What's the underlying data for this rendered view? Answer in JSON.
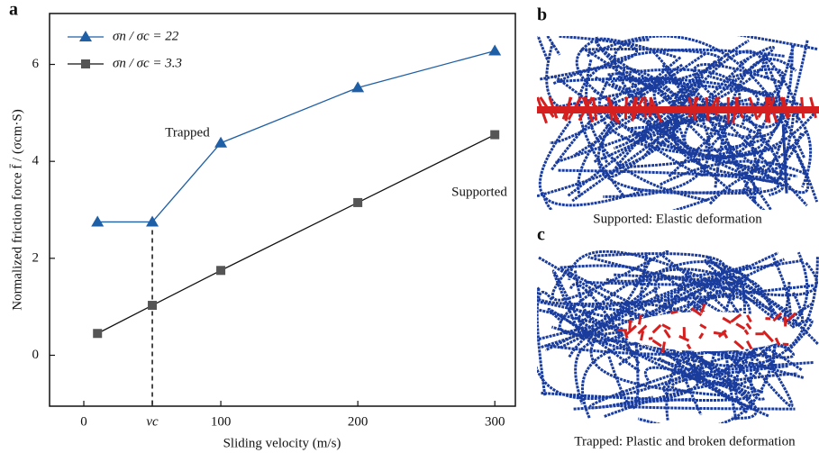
{
  "chart_data": {
    "type": "line",
    "x_label": "Sliding velocity (m/s)",
    "y_label": "Normalized friction force f̄ / (σcm·S)",
    "x": [
      10,
      50,
      100,
      200,
      300
    ],
    "series": [
      {
        "name": "σn / σc = 22",
        "color": "#1f5fa6",
        "marker": "triangle",
        "values": [
          2.75,
          2.75,
          4.38,
          5.52,
          6.28
        ]
      },
      {
        "name": "σn / σc = 3.3",
        "color": "#111111",
        "marker": "square",
        "values": [
          0.45,
          1.03,
          1.75,
          3.15,
          4.55
        ]
      }
    ],
    "xlim": [
      -25,
      315
    ],
    "ylim": [
      -1.05,
      7.05
    ],
    "xticks": [
      0,
      {
        "value": 50,
        "label": "vc"
      },
      100,
      200,
      300
    ],
    "yticks": [
      0,
      2,
      4,
      6
    ],
    "legend": "upper-left",
    "annotations": [
      "Trapped",
      "Supported"
    ],
    "panel_label": "a"
  },
  "panels": [
    {
      "label": "b",
      "caption": "Supported: Elastic deformation"
    },
    {
      "label": "c",
      "caption": "Trapped: Plastic and broken deformation"
    }
  ]
}
